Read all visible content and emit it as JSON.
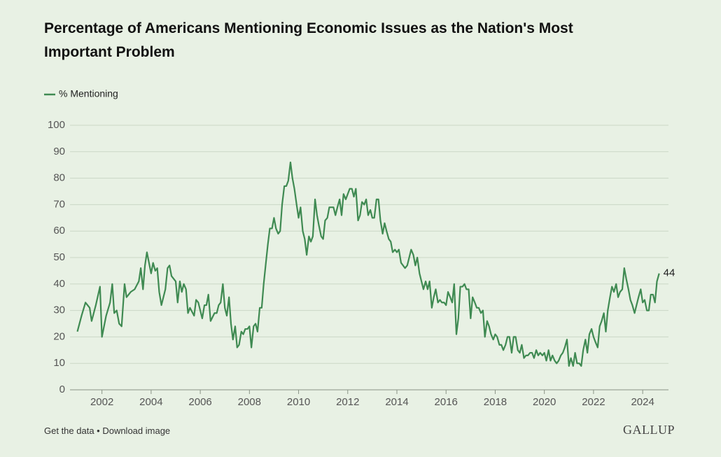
{
  "chart_data": {
    "type": "line",
    "title": "Percentage of Americans Mentioning Economic Issues as the Nation's Most Important Problem",
    "legend": "top-left",
    "grid": true,
    "x": [
      2001.0,
      2001.17,
      2001.33,
      2001.5,
      2001.58,
      2001.75,
      2001.92,
      2002.0,
      2002.17,
      2002.33,
      2002.42,
      2002.5,
      2002.6,
      2002.7,
      2002.8,
      2002.92,
      2003.0,
      2003.17,
      2003.33,
      2003.5,
      2003.58,
      2003.67,
      2003.75,
      2003.83,
      2004.0,
      2004.08,
      2004.17,
      2004.25,
      2004.33,
      2004.42,
      2004.58,
      2004.67,
      2004.75,
      2004.83,
      2005.0,
      2005.08,
      2005.17,
      2005.25,
      2005.33,
      2005.42,
      2005.5,
      2005.58,
      2005.75,
      2005.83,
      2005.92,
      2006.0,
      2006.08,
      2006.17,
      2006.25,
      2006.33,
      2006.42,
      2006.58,
      2006.67,
      2006.75,
      2006.83,
      2006.92,
      2007.0,
      2007.08,
      2007.17,
      2007.25,
      2007.33,
      2007.42,
      2007.5,
      2007.58,
      2007.67,
      2007.75,
      2007.83,
      2007.92,
      2008.0,
      2008.08,
      2008.17,
      2008.25,
      2008.33,
      2008.42,
      2008.5,
      2008.58,
      2008.67,
      2008.75,
      2008.83,
      2008.92,
      2009.0,
      2009.08,
      2009.17,
      2009.25,
      2009.33,
      2009.42,
      2009.5,
      2009.58,
      2009.67,
      2009.75,
      2009.83,
      2009.92,
      2010.0,
      2010.08,
      2010.17,
      2010.25,
      2010.33,
      2010.42,
      2010.5,
      2010.58,
      2010.67,
      2010.75,
      2010.83,
      2010.92,
      2011.0,
      2011.08,
      2011.17,
      2011.25,
      2011.33,
      2011.42,
      2011.5,
      2011.58,
      2011.67,
      2011.75,
      2011.83,
      2011.92,
      2012.0,
      2012.08,
      2012.17,
      2012.25,
      2012.33,
      2012.42,
      2012.5,
      2012.58,
      2012.67,
      2012.75,
      2012.83,
      2012.92,
      2013.0,
      2013.08,
      2013.17,
      2013.25,
      2013.33,
      2013.42,
      2013.5,
      2013.58,
      2013.67,
      2013.75,
      2013.83,
      2013.92,
      2014.0,
      2014.08,
      2014.17,
      2014.25,
      2014.33,
      2014.42,
      2014.5,
      2014.58,
      2014.67,
      2014.75,
      2014.83,
      2014.92,
      2015.0,
      2015.08,
      2015.17,
      2015.25,
      2015.33,
      2015.42,
      2015.5,
      2015.58,
      2015.67,
      2015.75,
      2015.83,
      2015.92,
      2016.0,
      2016.08,
      2016.17,
      2016.25,
      2016.33,
      2016.42,
      2016.5,
      2016.58,
      2016.67,
      2016.75,
      2016.83,
      2016.92,
      2017.0,
      2017.08,
      2017.17,
      2017.25,
      2017.33,
      2017.42,
      2017.5,
      2017.58,
      2017.67,
      2017.75,
      2017.83,
      2017.92,
      2018.0,
      2018.08,
      2018.17,
      2018.25,
      2018.33,
      2018.42,
      2018.5,
      2018.58,
      2018.67,
      2018.75,
      2018.83,
      2018.92,
      2019.0,
      2019.08,
      2019.17,
      2019.25,
      2019.33,
      2019.42,
      2019.5,
      2019.58,
      2019.67,
      2019.75,
      2019.83,
      2019.92,
      2020.0,
      2020.08,
      2020.17,
      2020.25,
      2020.33,
      2020.42,
      2020.5,
      2020.58,
      2020.67,
      2020.75,
      2020.83,
      2020.92,
      2021.0,
      2021.08,
      2021.17,
      2021.25,
      2021.33,
      2021.42,
      2021.5,
      2021.58,
      2021.67,
      2021.75,
      2021.83,
      2021.92,
      2022.0,
      2022.08,
      2022.17,
      2022.25,
      2022.33,
      2022.42,
      2022.5,
      2022.58,
      2022.67,
      2022.75,
      2022.83,
      2022.92,
      2023.0,
      2023.08,
      2023.17,
      2023.25,
      2023.33,
      2023.42,
      2023.5,
      2023.58,
      2023.67,
      2023.75,
      2023.83,
      2023.92,
      2024.0,
      2024.08,
      2024.17,
      2024.25,
      2024.33,
      2024.42,
      2024.5,
      2024.58,
      2024.67
    ],
    "series": [
      {
        "name": "% Mentioning",
        "color": "#3f8a52",
        "values": [
          22,
          28,
          33,
          31,
          26,
          32,
          39,
          20,
          28,
          33,
          40,
          29,
          30,
          25,
          24,
          40,
          35,
          37,
          38,
          41,
          46,
          38,
          47,
          52,
          44,
          48,
          45,
          46,
          37,
          32,
          38,
          46,
          47,
          43,
          41,
          33,
          41,
          37,
          40,
          38,
          29,
          31,
          28,
          34,
          33,
          30,
          27,
          32,
          32,
          36,
          26,
          29,
          29,
          32,
          33,
          40,
          31,
          28,
          35,
          25,
          19,
          24,
          16,
          17,
          22,
          21,
          23,
          23,
          24,
          16,
          24,
          25,
          22,
          31,
          31,
          40,
          48,
          55,
          61,
          61,
          65,
          61,
          59,
          60,
          70,
          77,
          77,
          79,
          86,
          80,
          76,
          70,
          65,
          69,
          60,
          57,
          51,
          58,
          56,
          58,
          72,
          66,
          62,
          58,
          57,
          64,
          65,
          69,
          69,
          69,
          66,
          69,
          72,
          66,
          74,
          72,
          74,
          76,
          76,
          73,
          76,
          64,
          66,
          71,
          70,
          72,
          66,
          68,
          65,
          65,
          72,
          72,
          64,
          59,
          63,
          60,
          57,
          56,
          52,
          53,
          52,
          53,
          48,
          47,
          46,
          47,
          50,
          53,
          51,
          47,
          50,
          44,
          41,
          38,
          41,
          38,
          41,
          31,
          35,
          38,
          33,
          34,
          33,
          33,
          32,
          37,
          35,
          33,
          40,
          21,
          27,
          39,
          39,
          40,
          38,
          38,
          27,
          35,
          33,
          31,
          31,
          29,
          30,
          20,
          26,
          24,
          21,
          19,
          21,
          20,
          17,
          17,
          15,
          17,
          20,
          20,
          14,
          20,
          20,
          15,
          14,
          17,
          12,
          13,
          13,
          14,
          14,
          12,
          15,
          13,
          14,
          13,
          14,
          11,
          15,
          11,
          13,
          11,
          10,
          11,
          13,
          14,
          16,
          19,
          9,
          12,
          9,
          14,
          10,
          10,
          9,
          15,
          19,
          14,
          21,
          23,
          20,
          18,
          16,
          24,
          26,
          29,
          22,
          30,
          35,
          39,
          37,
          40,
          35,
          37,
          38,
          46,
          42,
          38,
          34,
          32,
          29,
          32,
          35,
          38,
          33,
          34,
          30,
          30,
          36,
          36,
          33,
          41,
          44
        ]
      }
    ],
    "xlim": [
      2000.7,
      2025.05
    ],
    "xticks": [
      2002,
      2004,
      2006,
      2008,
      2010,
      2012,
      2014,
      2016,
      2018,
      2020,
      2022,
      2024
    ],
    "ylim": [
      0,
      100
    ],
    "yticks": [
      0,
      10,
      20,
      30,
      40,
      50,
      60,
      70,
      80,
      90,
      100
    ]
  },
  "footer": {
    "links": "Get the data • Download image",
    "brand": "GALLUP"
  }
}
